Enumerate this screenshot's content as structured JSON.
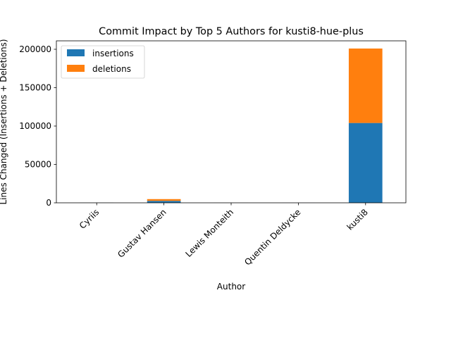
{
  "chart_data": {
    "type": "bar",
    "stacked": true,
    "title": "Commit Impact by Top 5 Authors for kusti8-hue-plus",
    "xlabel": "Author",
    "ylabel": "Lines Changed (Insertions + Deletions)",
    "categories": [
      "Cyriis",
      "Gustav Hansen",
      "Lewis Monteith",
      "Quentin Deldycke",
      "kusti8"
    ],
    "series": [
      {
        "name": "insertions",
        "color": "#1f77b4",
        "values": [
          100,
          2500,
          20,
          10,
          104000
        ]
      },
      {
        "name": "deletions",
        "color": "#ff7f0e",
        "values": [
          50,
          2300,
          10,
          5,
          97000
        ]
      }
    ],
    "ylim": [
      0,
      211000
    ],
    "yticks": [
      0,
      50000,
      100000,
      150000,
      200000
    ],
    "legend_position": "top-left",
    "grid": false
  }
}
